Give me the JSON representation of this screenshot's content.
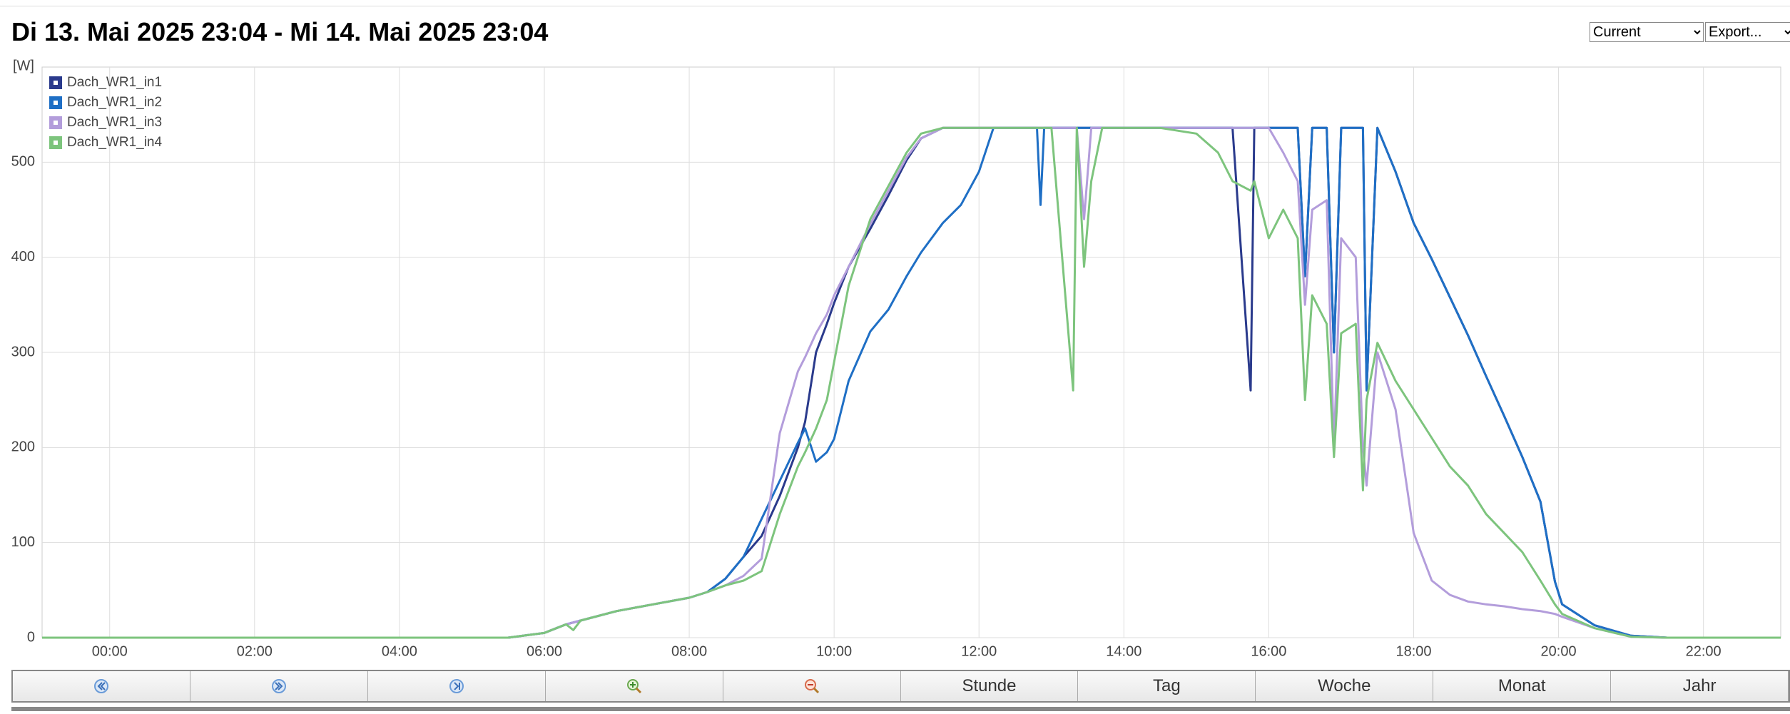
{
  "header": {
    "title": "Di 13. Mai 2025 23:04 - Mi 14. Mai 2025 23:04"
  },
  "controls": [
    "Current",
    "Export..."
  ],
  "chart_data": {
    "type": "line",
    "y_label": "[W]",
    "grid": true,
    "legend": "top-left",
    "xlim": [
      -0.933,
      23.067
    ],
    "ylim": [
      0,
      600
    ],
    "xticks": [
      {
        "value": 0,
        "label": "00:00"
      },
      {
        "value": 2,
        "label": "02:00"
      },
      {
        "value": 4,
        "label": "04:00"
      },
      {
        "value": 6,
        "label": "06:00"
      },
      {
        "value": 8,
        "label": "08:00"
      },
      {
        "value": 10,
        "label": "10:00"
      },
      {
        "value": 12,
        "label": "12:00"
      },
      {
        "value": 14,
        "label": "14:00"
      },
      {
        "value": 16,
        "label": "16:00"
      },
      {
        "value": 18,
        "label": "18:00"
      },
      {
        "value": 20,
        "label": "20:00"
      },
      {
        "value": 22,
        "label": "22:00"
      }
    ],
    "yticks": [
      0,
      100,
      200,
      300,
      400,
      500
    ],
    "x": [
      -0.933,
      5.5,
      6.0,
      6.3,
      6.4,
      6.5,
      7.0,
      7.5,
      8.0,
      8.25,
      8.5,
      8.75,
      9.0,
      9.25,
      9.5,
      9.6,
      9.75,
      9.9,
      10.0,
      10.2,
      10.5,
      10.75,
      11.0,
      11.2,
      11.5,
      11.75,
      12.0,
      12.2,
      12.5,
      12.8,
      12.85,
      12.9,
      13.0,
      13.3,
      13.35,
      13.45,
      13.55,
      13.7,
      14.0,
      14.5,
      15.0,
      15.3,
      15.5,
      15.75,
      15.8,
      16.0,
      16.2,
      16.4,
      16.5,
      16.6,
      16.8,
      16.9,
      17.0,
      17.2,
      17.3,
      17.35,
      17.5,
      17.75,
      18.0,
      18.25,
      18.5,
      18.75,
      19.0,
      19.25,
      19.5,
      19.75,
      19.95,
      20.05,
      20.5,
      21.0,
      21.5,
      23.067
    ],
    "series": [
      {
        "name": "Dach_WR1_in1",
        "color": "#2a3a8c",
        "values": [
          0,
          0,
          5,
          14,
          16,
          18,
          28,
          35,
          42,
          48,
          62,
          85,
          107,
          149,
          200,
          227,
          300,
          330,
          352,
          390,
          430,
          465,
          502,
          525,
          536,
          536,
          536,
          536,
          536,
          536,
          536,
          536,
          536,
          536,
          536,
          536,
          536,
          536,
          536,
          536,
          536,
          536,
          536,
          260,
          536,
          536,
          536,
          536,
          380,
          536,
          536,
          300,
          536,
          536,
          536,
          260,
          536,
          490,
          436,
          398,
          358,
          318,
          275,
          233,
          190,
          143,
          59,
          35,
          13,
          2,
          0,
          0
        ]
      },
      {
        "name": "Dach_WR1_in2",
        "color": "#1f6fc5",
        "values": [
          0,
          0,
          5,
          14,
          16,
          18,
          28,
          35,
          42,
          48,
          62,
          85,
          125,
          165,
          205,
          220,
          185,
          195,
          209,
          270,
          322,
          345,
          380,
          405,
          436,
          455,
          490,
          536,
          536,
          536,
          455,
          536,
          536,
          536,
          536,
          536,
          536,
          536,
          536,
          536,
          536,
          536,
          536,
          536,
          536,
          536,
          536,
          536,
          380,
          536,
          536,
          300,
          536,
          536,
          536,
          260,
          536,
          490,
          436,
          398,
          358,
          318,
          275,
          233,
          190,
          143,
          59,
          35,
          13,
          2,
          0,
          0
        ]
      },
      {
        "name": "Dach_WR1_in3",
        "color": "#b39ddb",
        "values": [
          0,
          0,
          5,
          14,
          16,
          18,
          28,
          35,
          42,
          48,
          55,
          65,
          83,
          215,
          280,
          295,
          320,
          340,
          360,
          390,
          435,
          470,
          505,
          525,
          536,
          536,
          536,
          536,
          536,
          536,
          536,
          536,
          536,
          536,
          536,
          440,
          536,
          536,
          536,
          536,
          536,
          536,
          536,
          536,
          536,
          536,
          510,
          480,
          350,
          450,
          460,
          200,
          420,
          400,
          200,
          160,
          300,
          240,
          110,
          60,
          45,
          38,
          35,
          33,
          30,
          28,
          25,
          22,
          10,
          1,
          0,
          0
        ]
      },
      {
        "name": "Dach_WR1_in4",
        "color": "#7dc47d",
        "values": [
          0,
          0,
          5,
          14,
          8,
          18,
          28,
          35,
          42,
          48,
          55,
          60,
          70,
          130,
          180,
          195,
          220,
          250,
          290,
          370,
          440,
          475,
          510,
          530,
          536,
          536,
          536,
          536,
          536,
          536,
          536,
          536,
          536,
          260,
          536,
          390,
          480,
          536,
          536,
          536,
          530,
          510,
          480,
          470,
          480,
          420,
          450,
          420,
          250,
          360,
          330,
          190,
          320,
          330,
          155,
          250,
          310,
          270,
          240,
          210,
          180,
          160,
          130,
          110,
          90,
          60,
          35,
          25,
          10,
          1,
          0,
          0
        ]
      }
    ]
  },
  "buttons": [
    "Stunde",
    "Tag",
    "Woche",
    "Monat",
    "Jahr"
  ]
}
